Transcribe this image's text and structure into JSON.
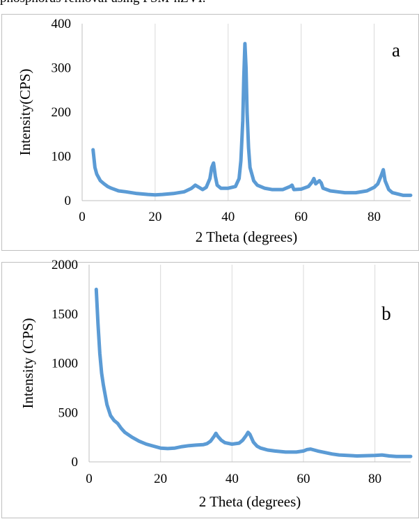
{
  "caption": "phosphorus removal using FSM-nZVI.",
  "chart_data": [
    {
      "type": "line",
      "panel_label": "a",
      "xlabel": "2 Theta (degrees)",
      "ylabel": "Intensity(CPS)",
      "xlim": [
        0,
        90
      ],
      "ylim": [
        0,
        400
      ],
      "xticks": [
        0,
        20,
        40,
        60,
        80
      ],
      "yticks": [
        0,
        100,
        200,
        300,
        400
      ],
      "grid": "vertical",
      "series_color": "#5b9bd5",
      "x": [
        3,
        3.5,
        4,
        5,
        6,
        7,
        8,
        10,
        12,
        15,
        18,
        20,
        22,
        25,
        28,
        30,
        31,
        32,
        33,
        34,
        35,
        35.5,
        36,
        36.5,
        37,
        38,
        40,
        42,
        43,
        43.5,
        44,
        44.3,
        44.6,
        44.9,
        45.2,
        45.6,
        46,
        47,
        48,
        50,
        52,
        55,
        57,
        57.5,
        58,
        60,
        62,
        63,
        63.5,
        64,
        65,
        65.5,
        66,
        68,
        70,
        72,
        75,
        78,
        80,
        81,
        82,
        82.5,
        83,
        84,
        85,
        88,
        90
      ],
      "values": [
        115,
        75,
        60,
        45,
        38,
        32,
        28,
        22,
        20,
        16,
        14,
        13,
        14,
        16,
        20,
        28,
        35,
        30,
        25,
        30,
        50,
        75,
        85,
        55,
        35,
        28,
        28,
        32,
        50,
        90,
        180,
        280,
        355,
        300,
        200,
        120,
        75,
        45,
        35,
        28,
        25,
        25,
        32,
        35,
        25,
        26,
        32,
        42,
        50,
        38,
        45,
        40,
        28,
        22,
        20,
        18,
        18,
        22,
        30,
        38,
        58,
        70,
        45,
        25,
        18,
        12,
        12
      ]
    },
    {
      "type": "line",
      "panel_label": "b",
      "xlabel": "2 Theta (degrees)",
      "ylabel": "Intensity (CPS)",
      "xlim": [
        0,
        90
      ],
      "ylim": [
        0,
        2000
      ],
      "xticks": [
        0,
        20,
        40,
        60,
        80
      ],
      "yticks": [
        0,
        500,
        1000,
        1500,
        2000
      ],
      "grid": "vertical",
      "series_color": "#5b9bd5",
      "x": [
        2,
        2.5,
        3,
        3.5,
        4,
        4.5,
        5,
        6,
        7,
        8,
        9,
        10,
        12,
        14,
        16,
        18,
        20,
        22,
        24,
        26,
        28,
        30,
        32,
        33,
        34,
        35,
        35.5,
        36,
        37,
        38,
        40,
        42,
        43,
        44,
        44.5,
        45,
        46,
        47,
        48,
        50,
        52,
        55,
        58,
        60,
        61,
        62,
        63,
        64,
        66,
        68,
        70,
        75,
        80,
        82,
        84,
        86,
        88,
        90
      ],
      "values": [
        1750,
        1400,
        1100,
        900,
        780,
        680,
        580,
        470,
        420,
        390,
        340,
        300,
        250,
        210,
        180,
        160,
        140,
        135,
        140,
        155,
        165,
        170,
        175,
        185,
        210,
        260,
        290,
        260,
        220,
        195,
        180,
        190,
        220,
        270,
        300,
        280,
        200,
        160,
        140,
        120,
        110,
        100,
        100,
        110,
        125,
        130,
        120,
        110,
        95,
        80,
        70,
        60,
        65,
        70,
        60,
        55,
        55,
        55
      ]
    }
  ]
}
